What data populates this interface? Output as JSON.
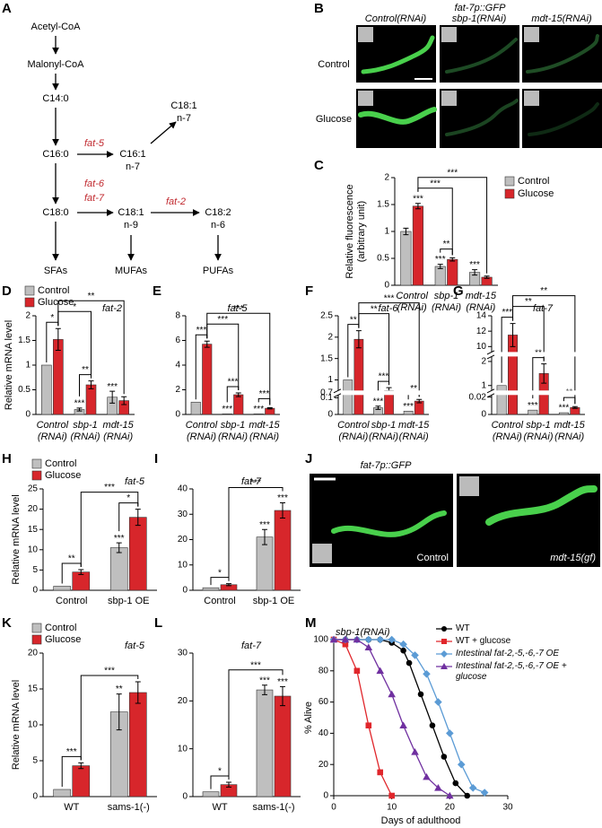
{
  "panel_labels": [
    "A",
    "B",
    "C",
    "D",
    "E",
    "F",
    "G",
    "H",
    "I",
    "J",
    "K",
    "L",
    "M"
  ],
  "pathway": {
    "nodes": [
      [
        "Acetyl-CoA"
      ],
      [
        "Malonyl-CoA"
      ],
      [
        "C14:0"
      ],
      [
        "C16:0"
      ],
      [
        "C18:0"
      ],
      [
        "C16:1",
        "n-7"
      ],
      [
        "C18:1",
        "n-7"
      ],
      [
        "C18:1",
        "n-9"
      ],
      [
        "C18:2",
        "n-6"
      ],
      [
        "SFAs"
      ],
      [
        "MUFAs"
      ],
      [
        "PUFAs"
      ]
    ],
    "enzymes": [
      "fat-5",
      "fat-6",
      "fat-7",
      "fat-2"
    ]
  },
  "images": {
    "B": {
      "title": "fat-7p::GFP",
      "columns": [
        "Control(RNAi)",
        "sbp-1(RNAi)",
        "mdt-15(RNAi)"
      ],
      "rows": [
        "Control",
        "Glucose"
      ]
    },
    "J": {
      "title": "fat-7p::GFP",
      "labels": [
        "Control",
        "mdt-15(gf)"
      ]
    }
  },
  "chart_data": [
    {
      "type": "bar",
      "ylabel": [
        "Relative fluorescence",
        "(arbitrary unit)"
      ],
      "categories": [
        [
          "Control",
          "(RNAi)"
        ],
        [
          "sbp-1",
          "(RNAi)"
        ],
        [
          "mdt-15",
          "(RNAi)"
        ]
      ],
      "ylim": [
        0,
        2
      ],
      "yticks": [
        0,
        0.5,
        1,
        1.5,
        2
      ],
      "legend": "right",
      "series": [
        {
          "name": "Control",
          "color": "#bfbfbf",
          "values": [
            1,
            0.35,
            0.24
          ],
          "errors": [
            0.06,
            0.04,
            0.05
          ],
          "stars": [
            null,
            "***",
            "***"
          ]
        },
        {
          "name": "Glucose",
          "color": "#d7262b",
          "values": [
            1.47,
            0.48,
            0.15
          ],
          "errors": [
            0.05,
            0.03,
            0.02
          ],
          "stars": [
            "***",
            null,
            null
          ]
        }
      ],
      "brackets": [
        {
          "from": [
            0,
            1
          ],
          "to": [
            1,
            1
          ],
          "label": "**"
        },
        {
          "from": [
            1,
            0
          ],
          "to": [
            1,
            1
          ],
          "label": "***"
        },
        {
          "from": [
            1,
            0
          ],
          "to": [
            1,
            2
          ],
          "label": "***"
        }
      ]
    },
    {
      "type": "bar",
      "title": "fat-2",
      "ylabel": "Relative mRNA level",
      "categories": [
        [
          "Control",
          "(RNAi)"
        ],
        [
          "sbp-1",
          "(RNAi)"
        ],
        [
          "mdt-15",
          "(RNAi)"
        ]
      ],
      "ylim": [
        0,
        2
      ],
      "yticks": [
        0,
        0.5,
        1,
        1.5,
        2
      ],
      "legend": "top-left",
      "series": [
        {
          "name": "Control",
          "color": "#bfbfbf",
          "values": [
            1,
            0.1,
            0.35
          ],
          "errors": [
            null,
            0.03,
            0.12
          ],
          "stars": [
            null,
            "***",
            "***"
          ]
        },
        {
          "name": "Glucose",
          "color": "#d7262b",
          "values": [
            1.52,
            0.6,
            0.28
          ],
          "errors": [
            0.22,
            0.08,
            0.08
          ],
          "stars": [
            null,
            null,
            null
          ]
        }
      ],
      "brackets": [
        {
          "from": [
            0,
            0
          ],
          "to": [
            1,
            0
          ],
          "label": "*"
        },
        {
          "from": [
            0,
            1
          ],
          "to": [
            1,
            1
          ],
          "label": "**"
        },
        {
          "from": [
            1,
            0
          ],
          "to": [
            1,
            1
          ],
          "label": "*"
        },
        {
          "from": [
            1,
            0
          ],
          "to": [
            1,
            2
          ],
          "label": "**"
        }
      ]
    },
    {
      "type": "bar",
      "title": "fat-5",
      "categories": [
        [
          "Control",
          "(RNAi)"
        ],
        [
          "sbp-1",
          "(RNAi)"
        ],
        [
          "mdt-15",
          "(RNAi)"
        ]
      ],
      "ylim": [
        0,
        8
      ],
      "yticks": [
        0,
        2,
        4,
        6,
        8
      ],
      "series": [
        {
          "color": "#bfbfbf",
          "values": [
            1,
            0.05,
            0.05
          ],
          "errors": [
            null,
            null,
            null
          ],
          "stars": [
            null,
            "***",
            "***"
          ]
        },
        {
          "color": "#d7262b",
          "values": [
            5.7,
            1.6,
            0.5
          ],
          "errors": [
            0.25,
            0.15,
            0.05
          ],
          "stars": [
            null,
            null,
            null
          ]
        }
      ],
      "brackets": [
        {
          "from": [
            0,
            0
          ],
          "to": [
            1,
            0
          ],
          "label": "***"
        },
        {
          "from": [
            0,
            1
          ],
          "to": [
            1,
            1
          ],
          "label": "***"
        },
        {
          "from": [
            0,
            2
          ],
          "to": [
            1,
            2
          ],
          "label": "***"
        },
        {
          "from": [
            1,
            0
          ],
          "to": [
            1,
            1
          ],
          "label": "***"
        },
        {
          "from": [
            1,
            0
          ],
          "to": [
            1,
            2
          ],
          "label": "***"
        }
      ]
    },
    {
      "type": "bar",
      "title": "fat-6",
      "categories": [
        [
          "Control",
          "(RNAi)"
        ],
        [
          "sbp-1",
          "(RNAi)"
        ],
        [
          "mdt-15",
          "(RNAi)"
        ]
      ],
      "ylim": [
        0,
        2.5
      ],
      "ysegments": [
        [
          0,
          0.13
        ],
        [
          0.7,
          2.5
        ]
      ],
      "yticks": [
        0,
        0.1,
        0.7,
        1,
        1.5,
        2,
        2.5
      ],
      "series": [
        {
          "color": "#bfbfbf",
          "values": [
            1,
            0.04,
            0.02
          ],
          "errors": [
            null,
            0.01,
            null
          ],
          "stars": [
            null,
            "***",
            "***"
          ]
        },
        {
          "color": "#d7262b",
          "values": [
            1.95,
            0.75,
            0.08
          ],
          "errors": [
            0.2,
            0.07,
            0.01
          ],
          "stars": [
            null,
            null,
            null
          ]
        }
      ],
      "brackets": [
        {
          "from": [
            0,
            0
          ],
          "to": [
            1,
            0
          ],
          "label": "**"
        },
        {
          "from": [
            0,
            1
          ],
          "to": [
            1,
            1
          ],
          "label": "***"
        },
        {
          "from": [
            0,
            2
          ],
          "to": [
            1,
            2
          ],
          "label": "**"
        },
        {
          "from": [
            1,
            0
          ],
          "to": [
            1,
            1
          ],
          "label": "**"
        },
        {
          "from": [
            1,
            0
          ],
          "to": [
            1,
            2
          ],
          "label": "***"
        }
      ]
    },
    {
      "type": "bar",
      "title": "fat-7",
      "categories": [
        [
          "Control",
          "(RNAi)"
        ],
        [
          "sbp-1",
          "(RNAi)"
        ],
        [
          "mdt-15",
          "(RNAi)"
        ]
      ],
      "ylim": [
        0,
        14
      ],
      "ysegments": [
        [
          0,
          0.025
        ],
        [
          0.7,
          2.3
        ],
        [
          9,
          14
        ]
      ],
      "yticks": [
        0,
        0.02,
        1,
        2,
        10,
        12,
        14
      ],
      "series": [
        {
          "color": "#bfbfbf",
          "values": [
            1,
            0.005,
            0.002
          ],
          "errors": [
            null,
            null,
            null
          ],
          "stars": [
            null,
            "***",
            "***"
          ]
        },
        {
          "color": "#d7262b",
          "values": [
            11.5,
            1.5,
            0.008
          ],
          "errors": [
            1.5,
            0.4,
            0.001
          ],
          "stars": [
            null,
            null,
            null
          ]
        }
      ],
      "brackets": [
        {
          "from": [
            0,
            0
          ],
          "to": [
            1,
            0
          ],
          "label": "***"
        },
        {
          "from": [
            0,
            1
          ],
          "to": [
            1,
            1
          ],
          "label": "**"
        },
        {
          "from": [
            0,
            2
          ],
          "to": [
            1,
            2
          ],
          "label": "**"
        },
        {
          "from": [
            1,
            0
          ],
          "to": [
            1,
            1
          ],
          "label": "**"
        },
        {
          "from": [
            1,
            0
          ],
          "to": [
            1,
            2
          ],
          "label": "**"
        }
      ]
    },
    {
      "type": "bar",
      "title": "fat-5",
      "ylabel": "Relative mRNA level",
      "categories": [
        [
          "Control"
        ],
        [
          "sbp-1 OE"
        ]
      ],
      "ylim": [
        0,
        25
      ],
      "yticks": [
        0,
        5,
        10,
        15,
        20,
        25
      ],
      "legend": "top-left",
      "series": [
        {
          "name": "Control",
          "color": "#bfbfbf",
          "values": [
            1,
            10.5
          ],
          "errors": [
            null,
            1.2
          ],
          "stars": [
            null,
            "***"
          ]
        },
        {
          "name": "Glucose",
          "color": "#d7262b",
          "values": [
            4.5,
            18
          ],
          "errors": [
            0.6,
            2
          ],
          "stars": [
            null,
            null
          ]
        }
      ],
      "brackets": [
        {
          "from": [
            0,
            0
          ],
          "to": [
            1,
            0
          ],
          "label": "**"
        },
        {
          "from": [
            0,
            1
          ],
          "to": [
            1,
            1
          ],
          "label": "*"
        },
        {
          "from": [
            1,
            0
          ],
          "to": [
            1,
            1
          ],
          "label": "***"
        }
      ]
    },
    {
      "type": "bar",
      "title": "fat-7",
      "categories": [
        [
          "Control"
        ],
        [
          "sbp-1 OE"
        ]
      ],
      "ylim": [
        0,
        40
      ],
      "yticks": [
        0,
        10,
        20,
        30,
        40
      ],
      "series": [
        {
          "color": "#bfbfbf",
          "values": [
            1,
            21
          ],
          "errors": [
            null,
            3
          ],
          "stars": [
            null,
            "***"
          ]
        },
        {
          "color": "#d7262b",
          "values": [
            2.2,
            31.5
          ],
          "errors": [
            0.4,
            3
          ],
          "stars": [
            null,
            "***"
          ]
        }
      ],
      "brackets": [
        {
          "from": [
            0,
            0
          ],
          "to": [
            1,
            0
          ],
          "label": "*"
        },
        {
          "from": [
            1,
            0
          ],
          "to": [
            1,
            1
          ],
          "label": "***"
        }
      ]
    },
    {
      "type": "bar",
      "title": "fat-5",
      "ylabel": "Relative mRNA level",
      "categories": [
        [
          "WT"
        ],
        [
          "sams-1(-)"
        ]
      ],
      "ylim": [
        0,
        20
      ],
      "yticks": [
        0,
        5,
        10,
        15,
        20
      ],
      "legend": "top-left",
      "series": [
        {
          "name": "Control",
          "color": "#bfbfbf",
          "values": [
            1,
            11.8
          ],
          "errors": [
            null,
            2.5
          ],
          "stars": [
            null,
            "**"
          ]
        },
        {
          "name": "Glucose",
          "color": "#d7262b",
          "values": [
            4.3,
            14.5
          ],
          "errors": [
            0.4,
            1.5
          ],
          "stars": [
            null,
            null
          ]
        }
      ],
      "brackets": [
        {
          "from": [
            0,
            0
          ],
          "to": [
            1,
            0
          ],
          "label": "***"
        },
        {
          "from": [
            1,
            0
          ],
          "to": [
            1,
            1
          ],
          "label": "***"
        }
      ]
    },
    {
      "type": "bar",
      "title": "fat-7",
      "categories": [
        [
          "WT"
        ],
        [
          "sams-1(-)"
        ]
      ],
      "ylim": [
        0,
        30
      ],
      "yticks": [
        0,
        10,
        20,
        30
      ],
      "series": [
        {
          "color": "#bfbfbf",
          "values": [
            1,
            22.3
          ],
          "errors": [
            null,
            1
          ],
          "stars": [
            null,
            "***"
          ]
        },
        {
          "color": "#d7262b",
          "values": [
            2.5,
            21
          ],
          "errors": [
            0.5,
            2
          ],
          "stars": [
            null,
            "***"
          ]
        }
      ],
      "brackets": [
        {
          "from": [
            0,
            0
          ],
          "to": [
            1,
            0
          ],
          "label": "*"
        },
        {
          "from": [
            1,
            0
          ],
          "to": [
            1,
            1
          ],
          "label": "***"
        }
      ]
    },
    {
      "type": "line",
      "title": "sbp-1(RNAi)",
      "xlabel": "Days of adulthood",
      "ylabel": "% Alive",
      "xlim": [
        0,
        30
      ],
      "xticks": [
        0,
        10,
        20,
        30
      ],
      "ylim": [
        0,
        100
      ],
      "yticks": [
        0,
        20,
        40,
        60,
        80,
        100
      ],
      "legend": "top-right",
      "series": [
        {
          "name": "WT",
          "color": "#000000",
          "marker": "circle",
          "x": [
            0,
            2,
            4,
            6,
            8,
            10,
            12,
            13,
            15,
            17,
            19,
            21,
            23
          ],
          "values": [
            100,
            100,
            100,
            100,
            100,
            98,
            93,
            85,
            65,
            45,
            25,
            8,
            0
          ]
        },
        {
          "name": "WT + glucose",
          "color": "#e0262b",
          "marker": "square",
          "x": [
            0,
            2,
            4,
            6,
            8,
            10
          ],
          "values": [
            100,
            97,
            80,
            45,
            15,
            0
          ]
        },
        {
          "name": "Intestinal fat-2,-5,-6,-7 OE",
          "color": "#5b9bd5",
          "marker": "diamond",
          "x": [
            0,
            2,
            4,
            6,
            8,
            10,
            12,
            14,
            16,
            18,
            20,
            22,
            24,
            26
          ],
          "values": [
            100,
            100,
            100,
            100,
            100,
            100,
            97,
            90,
            78,
            60,
            40,
            20,
            5,
            2
          ]
        },
        {
          "name": "Intestinal fat-2,-5,-6,-7 OE + glucose",
          "color": "#7030a0",
          "marker": "triangle",
          "x": [
            0,
            2,
            4,
            6,
            8,
            10,
            12,
            14,
            16,
            18,
            20
          ],
          "values": [
            100,
            100,
            100,
            95,
            80,
            65,
            45,
            28,
            12,
            5,
            0
          ]
        }
      ]
    }
  ]
}
